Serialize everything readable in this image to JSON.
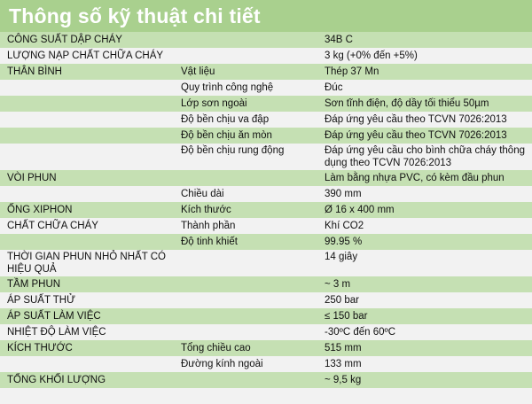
{
  "title": "Thông số kỹ thuật chi tiết",
  "colors": {
    "header": "#a9d08e",
    "row_green": "#c5e0b3",
    "row_light": "#f2f2f2"
  },
  "rows": [
    [
      "CÔNG SUẤT DẬP CHÁY",
      "",
      "34B C"
    ],
    [
      "LƯỢNG NẠP CHẤT CHỮA CHÁY",
      "",
      "3 kg (+0% đến +5%)"
    ],
    [
      "THÂN BÌNH",
      "Vật liệu",
      "Thép 37 Mn"
    ],
    [
      "",
      "Quy trình công nghệ",
      "Đúc"
    ],
    [
      "",
      "Lớp sơn ngoài",
      "Sơn tĩnh điện, độ dầy tối thiểu 50µm"
    ],
    [
      "",
      "Độ bền chịu va đập",
      "Đáp ứng yêu cầu theo TCVN 7026:2013"
    ],
    [
      "",
      "Độ bền chịu ăn mòn",
      "Đáp ứng yêu cầu theo TCVN 7026:2013"
    ],
    [
      "",
      "Độ bền chịu rung động",
      "Đáp ứng yêu cầu cho bình chữa cháy thông dụng theo TCVN 7026:2013"
    ],
    [
      "VÒI PHUN",
      "",
      "Làm bằng nhựa PVC, có kèm đầu phun"
    ],
    [
      "",
      "Chiều dài",
      "390 mm"
    ],
    [
      "ỐNG XIPHON",
      "Kích thước",
      "Ø 16 x 400 mm"
    ],
    [
      "CHẤT CHỮA CHÁY",
      "Thành phần",
      "Khí CO2"
    ],
    [
      "",
      "Độ tinh khiết",
      "99.95 %"
    ],
    [
      "THỜI GIAN PHUN NHỎ NHẤT CÓ HIỆU QUẢ",
      "",
      "14 giây"
    ],
    [
      "TẦM PHUN",
      "",
      "~ 3 m"
    ],
    [
      "ÁP SUẤT THỬ",
      "",
      "250 bar"
    ],
    [
      "ÁP SUẤT LÀM VIỆC",
      "",
      "≤ 150 bar"
    ],
    [
      "NHIỆT ĐỘ LÀM VIỆC",
      "",
      "-30ºC đến 60ºC"
    ],
    [
      "KÍCH THƯỚC",
      "Tổng chiều cao",
      "515 mm"
    ],
    [
      "",
      "Đường kính ngoài",
      "133 mm"
    ],
    [
      "TỔNG KHỐI LƯỢNG",
      "",
      "~ 9,5 kg"
    ]
  ]
}
